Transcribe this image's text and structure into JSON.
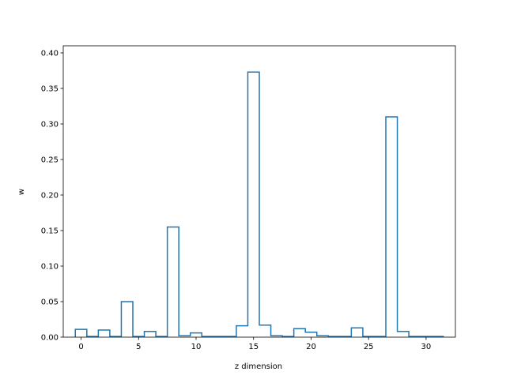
{
  "chart_data": {
    "type": "bar",
    "style": "step-histogram",
    "xlabel": "z dimension",
    "ylabel": "w",
    "xlim": [
      -1.55,
      32.55
    ],
    "ylim": [
      0,
      0.41
    ],
    "x_ticks": [
      0,
      5,
      10,
      15,
      20,
      25,
      30
    ],
    "x_tick_labels": [
      "0",
      "5",
      "10",
      "15",
      "20",
      "25",
      "30"
    ],
    "y_ticks": [
      0,
      0.05,
      0.1,
      0.15,
      0.2,
      0.25,
      0.3,
      0.35,
      0.4
    ],
    "y_tick_labels": [
      "0.00",
      "0.05",
      "0.10",
      "0.15",
      "0.20",
      "0.25",
      "0.30",
      "0.35",
      "0.40"
    ],
    "x": [
      0,
      1,
      2,
      3,
      4,
      5,
      6,
      7,
      8,
      9,
      10,
      11,
      12,
      13,
      14,
      15,
      16,
      17,
      18,
      19,
      20,
      21,
      22,
      23,
      24,
      25,
      26,
      27,
      28,
      29,
      30,
      31
    ],
    "values": [
      0.011,
      0.001,
      0.01,
      0.001,
      0.05,
      0.001,
      0.008,
      0.001,
      0.155,
      0.002,
      0.006,
      0.001,
      0.001,
      0.001,
      0.016,
      0.373,
      0.017,
      0.002,
      0.001,
      0.012,
      0.007,
      0.002,
      0.001,
      0.001,
      0.013,
      0.001,
      0.001,
      0.31,
      0.008,
      0.001,
      0.001,
      0.001
    ],
    "grid": false,
    "color": "#1f77b4"
  }
}
